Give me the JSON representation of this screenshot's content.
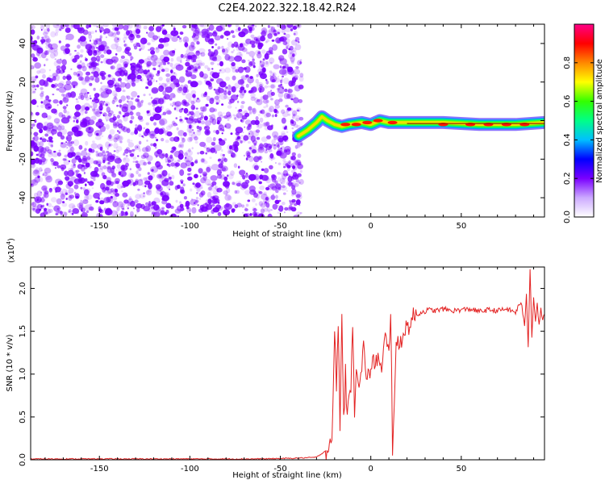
{
  "title": "C2E4.2022.322.18.42.R24",
  "colors": {
    "spectrogram_purple": "#7a00ff",
    "snr_line": "#e32222",
    "axis": "#000000"
  },
  "chart_data": [
    {
      "type": "heatmap",
      "id": "spectrogram",
      "xlabel": "Height of straight line (km)",
      "ylabel": "Frequency (Hz)",
      "xlim": [
        -188,
        96
      ],
      "ylim": [
        -50,
        50
      ],
      "xticks": [
        -150,
        -100,
        -50,
        0,
        50
      ],
      "yticks": [
        -40,
        -20,
        0,
        20,
        40
      ],
      "noise_region_x": [
        -188,
        -40
      ],
      "signal_track": [
        {
          "x": -40,
          "y": -8
        },
        {
          "x": -35,
          "y": -5
        },
        {
          "x": -30,
          "y": -1
        },
        {
          "x": -27,
          "y": 2
        },
        {
          "x": -24,
          "y": 0
        },
        {
          "x": -20,
          "y": -2
        },
        {
          "x": -16,
          "y": -3
        },
        {
          "x": -12,
          "y": -2
        },
        {
          "x": -5,
          "y": -1
        },
        {
          "x": 0,
          "y": -2
        },
        {
          "x": 5,
          "y": 0
        },
        {
          "x": 10,
          "y": -1
        },
        {
          "x": 20,
          "y": -1
        },
        {
          "x": 40,
          "y": -1
        },
        {
          "x": 60,
          "y": -2
        },
        {
          "x": 80,
          "y": -2
        },
        {
          "x": 96,
          "y": -1
        }
      ],
      "colorbar": {
        "label": "Normalized spectral amplitude",
        "range": [
          0,
          1
        ],
        "ticks": [
          0.0,
          0.2,
          0.4,
          0.6,
          0.8
        ],
        "tick_labels": [
          "0.0",
          "0.2",
          "0.4",
          "0.6",
          "0.8"
        ],
        "colors": [
          "#ffffff",
          "#ccaaff",
          "#7a00ff",
          "#0000ff",
          "#00bfff",
          "#00ff88",
          "#33ff00",
          "#ffff00",
          "#ff8800",
          "#ff0000",
          "#ff0088"
        ]
      }
    },
    {
      "type": "line",
      "id": "snr",
      "xlabel": "Height of straight line (km)",
      "ylabel": "SNR (10 * v/v)",
      "y_multiplier": "(x10",
      "y_multiplier_exp": "4",
      "xlim": [
        -188,
        96
      ],
      "ylim": [
        0,
        2.25
      ],
      "xticks": [
        -150,
        -100,
        -50,
        0,
        50
      ],
      "yticks": [
        0.0,
        0.5,
        1.0,
        1.5,
        2.0
      ],
      "ytick_labels": [
        "0.0",
        "0.5",
        "1.0",
        "1.5",
        "2.0"
      ],
      "series": [
        {
          "x": [
            -188,
            -150,
            -100,
            -60,
            -40,
            -30,
            -22,
            -21,
            -20,
            -19,
            -18,
            -17,
            -16,
            -15,
            -14,
            -13,
            -12,
            -11,
            -10,
            -9,
            -8,
            -6,
            -4,
            -2,
            0,
            2,
            4,
            6,
            8,
            10,
            11,
            12,
            14,
            16,
            18,
            20,
            22,
            24,
            28,
            32,
            36,
            40,
            45,
            50,
            55,
            60,
            65,
            70,
            75,
            80,
            83,
            85,
            86,
            87,
            88,
            89,
            90,
            91,
            92,
            93,
            94,
            95,
            96
          ],
          "y": [
            0.01,
            0.01,
            0.01,
            0.01,
            0.02,
            0.03,
            0.15,
            0.5,
            1.6,
            0.8,
            1.65,
            0.3,
            1.8,
            0.45,
            1.0,
            0.5,
            0.65,
            0.9,
            1.65,
            0.6,
            1.1,
            0.85,
            1.3,
            0.95,
            1.05,
            1.15,
            1.2,
            1.0,
            1.45,
            1.2,
            1.8,
            0.15,
            1.3,
            1.35,
            1.5,
            1.55,
            1.6,
            1.68,
            1.72,
            1.75,
            1.74,
            1.76,
            1.74,
            1.75,
            1.76,
            1.73,
            1.75,
            1.74,
            1.76,
            1.72,
            1.85,
            1.55,
            1.95,
            1.3,
            2.25,
            1.45,
            1.9,
            1.6,
            1.85,
            1.55,
            1.75,
            1.65,
            1.7
          ]
        }
      ]
    }
  ]
}
